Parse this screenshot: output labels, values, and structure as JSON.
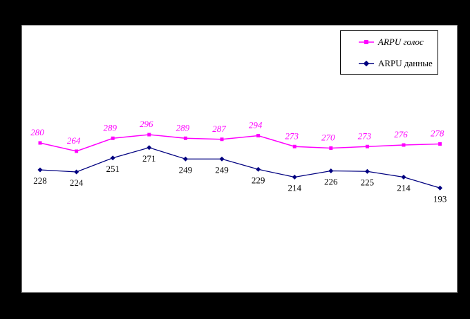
{
  "colors": {
    "page_background": "#000000",
    "chart_background": "#ffffff",
    "chart_border": "#808080",
    "legend_border": "#000000",
    "voice_series": "#ff00ff",
    "data_series": "#000080",
    "voice_label": "#ff00ff",
    "data_label": "#000000"
  },
  "chart_data": {
    "type": "line",
    "title": "",
    "xlabel": "",
    "ylabel": "",
    "x_axis_visible": false,
    "y_axis_visible": false,
    "grid": false,
    "data_labels": true,
    "legend_position": "top-right",
    "point_count": 12,
    "series": [
      {
        "name": "ARPU голос",
        "color": "#ff00ff",
        "marker": "square",
        "label_color": "#ff00ff",
        "label_style": "italic",
        "label_position": "above",
        "values": [
          280,
          264,
          289,
          296,
          289,
          287,
          294,
          273,
          270,
          273,
          276,
          278
        ]
      },
      {
        "name": "ARPU данные",
        "color": "#000080",
        "marker": "diamond",
        "label_color": "#000000",
        "label_style": "normal",
        "label_position": "below",
        "values": [
          228,
          224,
          251,
          271,
          249,
          249,
          229,
          214,
          226,
          225,
          214,
          193
        ]
      }
    ]
  }
}
